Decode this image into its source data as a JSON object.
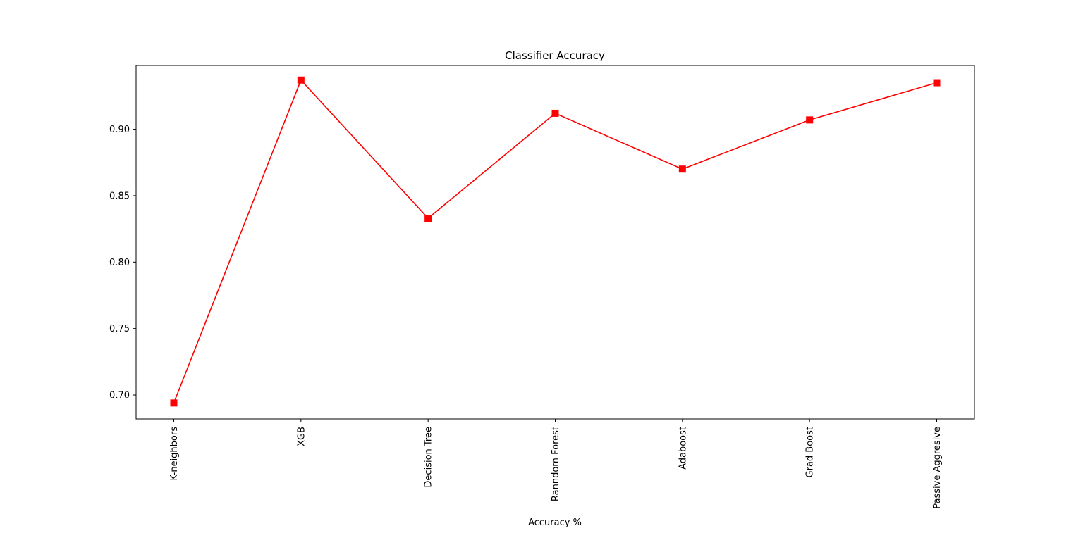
{
  "chart_data": {
    "type": "line",
    "title": "Classifier Accuracy",
    "xlabel": "Accuracy %",
    "ylabel": "",
    "categories": [
      "K-neighbors",
      "XGB",
      "Decision Tree",
      "Ranndom Forest",
      "Adaboost",
      "Grad Boost",
      "Passive Aggresive"
    ],
    "series": [
      {
        "values": [
          0.694,
          0.937,
          0.833,
          0.912,
          0.87,
          0.907,
          0.935
        ],
        "color": "#ff0000",
        "marker": "square"
      }
    ],
    "ylim": [
      0.682,
      0.948
    ],
    "yticks": [
      0.7,
      0.75,
      0.8,
      0.85,
      0.9
    ],
    "ytick_labels": [
      "0.70",
      "0.75",
      "0.80",
      "0.85",
      "0.90"
    ],
    "grid": false,
    "x_tick_rotation": "vertical"
  }
}
